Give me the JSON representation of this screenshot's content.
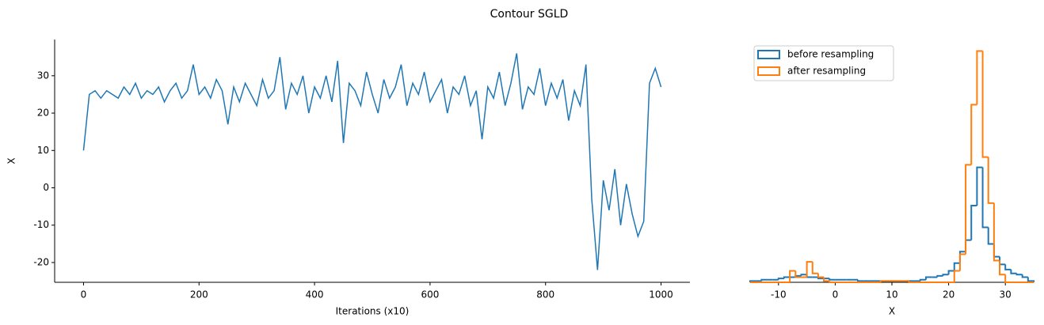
{
  "title": "Contour SGLD",
  "chart_data": [
    {
      "type": "line",
      "xlabel": "Iterations (x10)",
      "ylabel": "X",
      "x": [
        0,
        10,
        20,
        30,
        40,
        50,
        60,
        70,
        80,
        90,
        100,
        110,
        120,
        130,
        140,
        150,
        160,
        170,
        180,
        190,
        200,
        210,
        220,
        230,
        240,
        250,
        260,
        270,
        280,
        290,
        300,
        310,
        320,
        330,
        340,
        350,
        360,
        370,
        380,
        390,
        400,
        410,
        420,
        430,
        440,
        450,
        460,
        470,
        480,
        490,
        500,
        510,
        520,
        530,
        540,
        550,
        560,
        570,
        580,
        590,
        600,
        610,
        620,
        630,
        640,
        650,
        660,
        670,
        680,
        690,
        700,
        710,
        720,
        730,
        740,
        750,
        760,
        770,
        780,
        790,
        800,
        810,
        820,
        830,
        840,
        850,
        860,
        870,
        880,
        890,
        900,
        910,
        920,
        930,
        940,
        950,
        960,
        970,
        980,
        990,
        1000
      ],
      "series": [
        {
          "name": "X",
          "color": "#1f77b4",
          "values": [
            10,
            25,
            26,
            24,
            26,
            25,
            24,
            27,
            25,
            28,
            24,
            26,
            25,
            27,
            23,
            26,
            28,
            24,
            26,
            33,
            25,
            27,
            24,
            29,
            26,
            17,
            27,
            23,
            28,
            25,
            22,
            29,
            24,
            26,
            35,
            21,
            28,
            25,
            30,
            20,
            27,
            24,
            30,
            23,
            34,
            12,
            28,
            26,
            22,
            31,
            25,
            20,
            29,
            24,
            27,
            33,
            22,
            28,
            25,
            31,
            23,
            26,
            29,
            20,
            27,
            25,
            30,
            22,
            26,
            13,
            27,
            24,
            31,
            22,
            28,
            36,
            21,
            27,
            25,
            32,
            22,
            28,
            24,
            29,
            18,
            26,
            22,
            33,
            -3,
            -22,
            2,
            -6,
            5,
            -10,
            1,
            -7,
            -13,
            -9,
            28,
            32,
            27
          ]
        }
      ],
      "xlim": [
        -50,
        1050
      ],
      "xticks": [
        0,
        200,
        400,
        600,
        800,
        1000
      ],
      "ylim": [
        -25.3,
        39.7
      ],
      "yticks": [
        -20,
        -10,
        0,
        10,
        20,
        30
      ]
    },
    {
      "type": "histogram",
      "xlabel": "X",
      "bins": [
        -15,
        -14,
        -13,
        -12,
        -11,
        -10,
        -9,
        -8,
        -7,
        -6,
        -5,
        -4,
        -3,
        -2,
        -1,
        0,
        1,
        2,
        3,
        4,
        5,
        6,
        7,
        8,
        9,
        10,
        11,
        12,
        13,
        14,
        15,
        16,
        17,
        18,
        19,
        20,
        21,
        22,
        23,
        24,
        25,
        26,
        27,
        28,
        29,
        30,
        31,
        32,
        33,
        34,
        35
      ],
      "series": [
        {
          "name": "before resampling",
          "color": "#1f77b4",
          "values": [
            0.001,
            0.001,
            0.002,
            0.002,
            0.002,
            0.003,
            0.004,
            0.004,
            0.005,
            0.006,
            0.004,
            0.004,
            0.003,
            0.003,
            0.002,
            0.002,
            0.002,
            0.002,
            0.002,
            0.001,
            0.001,
            0.001,
            0.001,
            0.001,
            0.001,
            0.001,
            0.001,
            0.001,
            0.001,
            0.001,
            0.002,
            0.004,
            0.004,
            0.005,
            0.006,
            0.009,
            0.015,
            0.024,
            0.033,
            0.06,
            0.09,
            0.043,
            0.03,
            0.02,
            0.014,
            0.01,
            0.007,
            0.006,
            0.004,
            0.001
          ]
        },
        {
          "name": "after resampling",
          "color": "#ff7f0e",
          "values": [
            0,
            0,
            0,
            0,
            0,
            0,
            0,
            0.009,
            0.004,
            0.004,
            0.016,
            0.007,
            0.004,
            0.001,
            0,
            0,
            0,
            0,
            0,
            0,
            0,
            0,
            0,
            0.001,
            0.001,
            0.001,
            0.001,
            0.001,
            0,
            0,
            0,
            0,
            0,
            0,
            0,
            0,
            0.009,
            0.022,
            0.092,
            0.139,
            0.181,
            0.098,
            0.062,
            0.017,
            0.006,
            0,
            0,
            0,
            0,
            0
          ]
        }
      ],
      "xlim": [
        -15,
        35
      ],
      "xticks": [
        -10,
        0,
        10,
        20,
        30
      ],
      "ylim": [
        0,
        0.19
      ],
      "legend": "upper left"
    }
  ]
}
